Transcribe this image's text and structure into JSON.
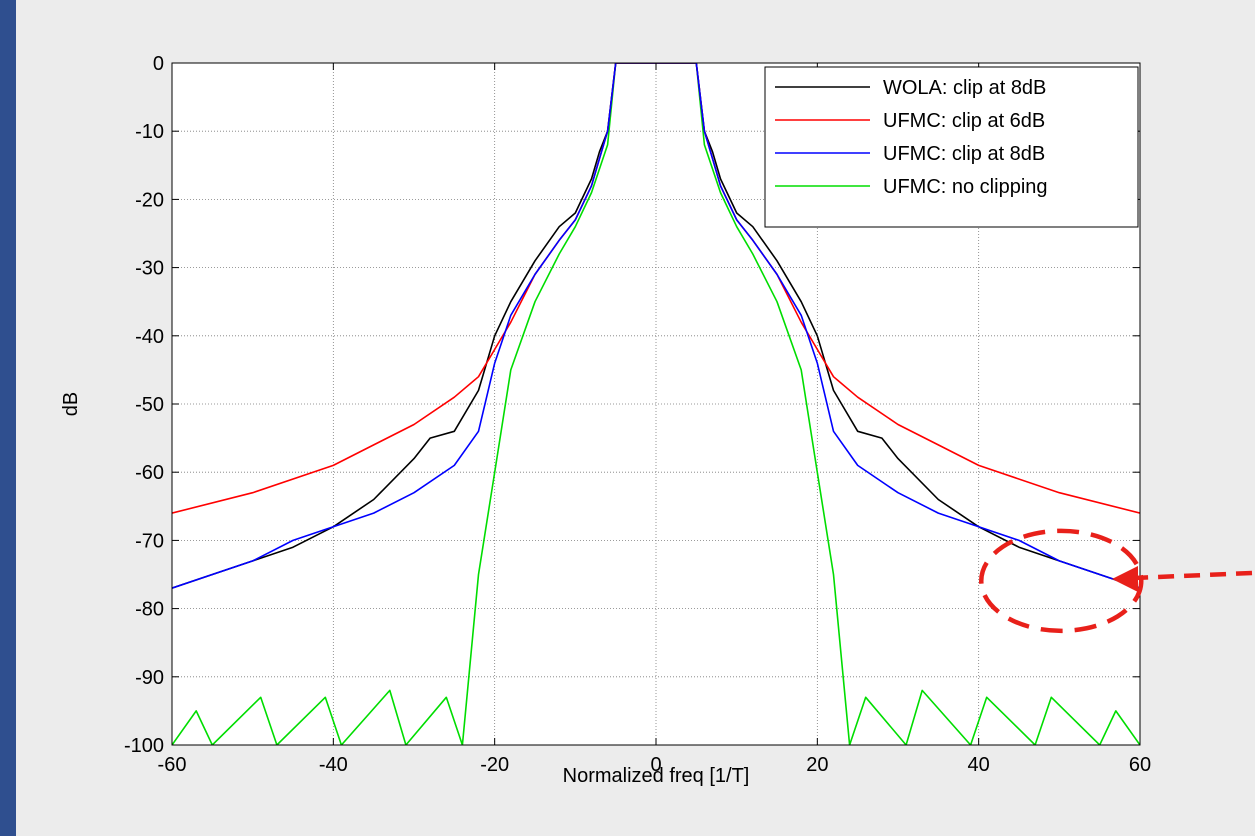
{
  "chart_data": {
    "type": "line",
    "title": "",
    "xlabel": "Normalized freq [1/T]",
    "ylabel": "dB",
    "xlim": [
      -60,
      60
    ],
    "ylim": [
      -100,
      0
    ],
    "xticks": [
      -60,
      -40,
      -20,
      0,
      20,
      40,
      60
    ],
    "yticks": [
      0,
      -10,
      -20,
      -30,
      -40,
      -50,
      -60,
      -70,
      -80,
      -90,
      -100
    ],
    "grid": true,
    "legend_position": "top-right",
    "series": [
      {
        "name": "WOLA: clip at 8dB",
        "color": "#000000",
        "points": [
          [
            -60,
            -77
          ],
          [
            -55,
            -75
          ],
          [
            -50,
            -73
          ],
          [
            -45,
            -71
          ],
          [
            -40,
            -68
          ],
          [
            -35,
            -64
          ],
          [
            -30,
            -58
          ],
          [
            -28,
            -55
          ],
          [
            -25,
            -54
          ],
          [
            -22,
            -48
          ],
          [
            -20,
            -40
          ],
          [
            -18,
            -35
          ],
          [
            -15,
            -29
          ],
          [
            -12,
            -24
          ],
          [
            -10,
            -22
          ],
          [
            -8,
            -17
          ],
          [
            -7,
            -13
          ],
          [
            -6,
            -10
          ],
          [
            -5,
            0
          ],
          [
            5,
            0
          ],
          [
            6,
            -10
          ],
          [
            7,
            -13
          ],
          [
            8,
            -17
          ],
          [
            10,
            -22
          ],
          [
            12,
            -24
          ],
          [
            15,
            -29
          ],
          [
            18,
            -35
          ],
          [
            20,
            -40
          ],
          [
            22,
            -48
          ],
          [
            25,
            -54
          ],
          [
            28,
            -55
          ],
          [
            30,
            -58
          ],
          [
            35,
            -64
          ],
          [
            40,
            -68
          ],
          [
            45,
            -71
          ],
          [
            50,
            -73
          ],
          [
            55,
            -75
          ],
          [
            60,
            -77
          ]
        ]
      },
      {
        "name": "UFMC: clip at 6dB",
        "color": "#ff0000",
        "points": [
          [
            -60,
            -66
          ],
          [
            -50,
            -63
          ],
          [
            -40,
            -59
          ],
          [
            -35,
            -56
          ],
          [
            -30,
            -53
          ],
          [
            -25,
            -49
          ],
          [
            -22,
            -46
          ],
          [
            -20,
            -42
          ],
          [
            -18,
            -38
          ],
          [
            -15,
            -31
          ],
          [
            -12,
            -26
          ],
          [
            -10,
            -23
          ],
          [
            -8,
            -18
          ],
          [
            -7,
            -14
          ],
          [
            -6,
            -10
          ],
          [
            -5,
            0
          ],
          [
            5,
            0
          ],
          [
            6,
            -10
          ],
          [
            7,
            -14
          ],
          [
            8,
            -18
          ],
          [
            10,
            -23
          ],
          [
            12,
            -26
          ],
          [
            15,
            -31
          ],
          [
            18,
            -38
          ],
          [
            20,
            -42
          ],
          [
            22,
            -46
          ],
          [
            25,
            -49
          ],
          [
            30,
            -53
          ],
          [
            35,
            -56
          ],
          [
            40,
            -59
          ],
          [
            50,
            -63
          ],
          [
            60,
            -66
          ]
        ]
      },
      {
        "name": "UFMC: clip at 8dB",
        "color": "#0000ff",
        "points": [
          [
            -60,
            -77
          ],
          [
            -55,
            -75
          ],
          [
            -50,
            -73
          ],
          [
            -45,
            -70
          ],
          [
            -40,
            -68
          ],
          [
            -35,
            -66
          ],
          [
            -30,
            -63
          ],
          [
            -25,
            -59
          ],
          [
            -22,
            -54
          ],
          [
            -20,
            -44
          ],
          [
            -18,
            -37
          ],
          [
            -15,
            -31
          ],
          [
            -12,
            -26
          ],
          [
            -10,
            -23
          ],
          [
            -8,
            -18
          ],
          [
            -7,
            -14
          ],
          [
            -6,
            -10
          ],
          [
            -5,
            0
          ],
          [
            5,
            0
          ],
          [
            6,
            -10
          ],
          [
            7,
            -14
          ],
          [
            8,
            -18
          ],
          [
            10,
            -23
          ],
          [
            12,
            -26
          ],
          [
            15,
            -31
          ],
          [
            18,
            -37
          ],
          [
            20,
            -44
          ],
          [
            22,
            -54
          ],
          [
            25,
            -59
          ],
          [
            30,
            -63
          ],
          [
            35,
            -66
          ],
          [
            40,
            -68
          ],
          [
            45,
            -70
          ],
          [
            50,
            -73
          ],
          [
            55,
            -75
          ],
          [
            60,
            -77
          ]
        ]
      },
      {
        "name": "UFMC: no clipping",
        "color": "#00dd00",
        "points": [
          [
            -60,
            -100
          ],
          [
            -57,
            -95
          ],
          [
            -55,
            -100
          ],
          [
            -49,
            -93
          ],
          [
            -47,
            -100
          ],
          [
            -41,
            -93
          ],
          [
            -39,
            -100
          ],
          [
            -33,
            -92
          ],
          [
            -31,
            -100
          ],
          [
            -26,
            -93
          ],
          [
            -24,
            -100
          ],
          [
            -22,
            -75
          ],
          [
            -20,
            -60
          ],
          [
            -18,
            -45
          ],
          [
            -15,
            -35
          ],
          [
            -12,
            -28
          ],
          [
            -10,
            -24
          ],
          [
            -8,
            -19
          ],
          [
            -6,
            -12
          ],
          [
            -5,
            0
          ],
          [
            5,
            0
          ],
          [
            6,
            -12
          ],
          [
            8,
            -19
          ],
          [
            10,
            -24
          ],
          [
            12,
            -28
          ],
          [
            15,
            -35
          ],
          [
            18,
            -45
          ],
          [
            20,
            -60
          ],
          [
            22,
            -75
          ],
          [
            24,
            -100
          ],
          [
            26,
            -93
          ],
          [
            31,
            -100
          ],
          [
            33,
            -92
          ],
          [
            39,
            -100
          ],
          [
            41,
            -93
          ],
          [
            47,
            -100
          ],
          [
            49,
            -93
          ],
          [
            55,
            -100
          ],
          [
            57,
            -95
          ],
          [
            60,
            -100
          ]
        ]
      }
    ]
  },
  "annotation": {
    "type": "dashed-ellipse-with-arrow",
    "color": "#e8201a",
    "center": [
      49,
      -73
    ]
  }
}
